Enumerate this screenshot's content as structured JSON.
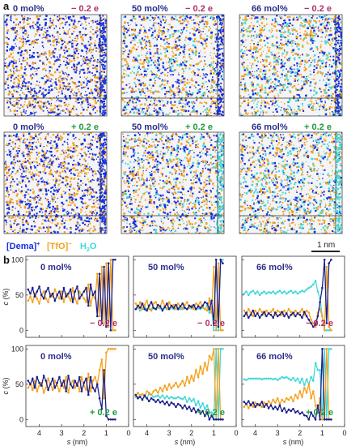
{
  "panel_a": {
    "letter": "a",
    "boxes": [
      {
        "mol": "0 mol%",
        "charge": "− 0.2 e",
        "sign": "neg"
      },
      {
        "mol": "50 mol%",
        "charge": "− 0.2 e",
        "sign": "neg"
      },
      {
        "mol": "66 mol%",
        "charge": "− 0.2 e",
        "sign": "neg"
      },
      {
        "mol": "0 mol%",
        "charge": "+ 0.2 e",
        "sign": "pos"
      },
      {
        "mol": "50 mol%",
        "charge": "+ 0.2 e",
        "sign": "pos"
      },
      {
        "mol": "66 mol%",
        "charge": "+ 0.2 e",
        "sign": "pos"
      }
    ],
    "legend": {
      "dema": "[Dema]",
      "dema_sup": "+",
      "tfo": "[TfO]",
      "tfo_sup": "−",
      "water": "H",
      "water_sub": "2",
      "water_end": "O"
    },
    "scalebar": "1 nm"
  },
  "panel_b": {
    "letter": "b",
    "ylabel_var": "c",
    "ylabel_unit": " (%)",
    "xlabel_var": "s",
    "xlabel_unit": " (nm)",
    "xticks": [
      "4",
      "3",
      "2",
      "1",
      "0"
    ],
    "yticks": [
      "0",
      "50",
      "100"
    ]
  },
  "colors": {
    "dema": "#1b1f8a",
    "tfo": "#f5a11c",
    "water": "#3fd8d8",
    "neg_label": "#b0306a",
    "pos_label": "#1f9a3c",
    "mol_label": "#2a2f8a",
    "bright_blue": "#1530e0"
  },
  "chart_data": [
    {
      "type": "line",
      "mol": "0 mol%",
      "charge": "− 0.2 e",
      "xlabel": "s (nm)",
      "ylabel": "c (%)",
      "xlim": [
        4.6,
        0
      ],
      "ylim": [
        -10,
        105
      ],
      "x": [
        4.5,
        4.4,
        4.3,
        4.2,
        4.1,
        4.0,
        3.9,
        3.8,
        3.7,
        3.6,
        3.5,
        3.4,
        3.3,
        3.2,
        3.1,
        3.0,
        2.9,
        2.8,
        2.7,
        2.6,
        2.5,
        2.4,
        2.3,
        2.2,
        2.1,
        2.0,
        1.9,
        1.8,
        1.7,
        1.6,
        1.5,
        1.4,
        1.3,
        1.2,
        1.1,
        1.0,
        0.9,
        0.8,
        0.7,
        0.6
      ],
      "series": [
        {
          "name": "[Dema]+",
          "values": [
            58,
            52,
            60,
            48,
            55,
            62,
            50,
            45,
            55,
            60,
            48,
            52,
            42,
            50,
            55,
            45,
            60,
            48,
            52,
            58,
            40,
            55,
            62,
            45,
            50,
            55,
            60,
            35,
            65,
            50,
            55,
            20,
            80,
            10,
            90,
            5,
            95,
            0,
            100,
            100
          ]
        },
        {
          "name": "[TfO]-",
          "values": [
            42,
            48,
            40,
            52,
            45,
            38,
            50,
            55,
            45,
            40,
            52,
            48,
            58,
            50,
            45,
            55,
            40,
            52,
            48,
            42,
            60,
            45,
            38,
            55,
            50,
            45,
            40,
            65,
            35,
            50,
            45,
            80,
            20,
            90,
            10,
            95,
            5,
            100,
            0,
            0
          ]
        }
      ]
    },
    {
      "type": "line",
      "mol": "50 mol%",
      "charge": "− 0.2 e",
      "xlabel": "s (nm)",
      "ylabel": "c (%)",
      "xlim": [
        4.6,
        0
      ],
      "ylim": [
        -10,
        105
      ],
      "x": [
        4.5,
        4.4,
        4.3,
        4.2,
        4.1,
        4.0,
        3.9,
        3.8,
        3.7,
        3.6,
        3.5,
        3.4,
        3.3,
        3.2,
        3.1,
        3.0,
        2.9,
        2.8,
        2.7,
        2.6,
        2.5,
        2.4,
        2.3,
        2.2,
        2.1,
        2.0,
        1.9,
        1.8,
        1.7,
        1.6,
        1.5,
        1.4,
        1.3,
        1.2,
        1.1,
        1.0,
        0.9,
        0.8,
        0.7,
        0.6
      ],
      "series": [
        {
          "name": "[Dema]+",
          "values": [
            30,
            35,
            32,
            38,
            30,
            28,
            35,
            40,
            32,
            30,
            36,
            34,
            28,
            33,
            38,
            30,
            35,
            32,
            36,
            30,
            34,
            38,
            32,
            30,
            35,
            33,
            36,
            30,
            34,
            32,
            35,
            40,
            38,
            30,
            42,
            10,
            100,
            5,
            100,
            95
          ]
        },
        {
          "name": "[TfO]-",
          "values": [
            38,
            32,
            40,
            30,
            36,
            42,
            30,
            28,
            38,
            40,
            32,
            34,
            42,
            35,
            30,
            40,
            33,
            36,
            30,
            38,
            34,
            30,
            36,
            40,
            32,
            35,
            30,
            38,
            36,
            40,
            33,
            30,
            28,
            45,
            25,
            90,
            0,
            95,
            0,
            0
          ]
        },
        {
          "name": "H2O",
          "values": [
            30,
            32,
            28,
            31,
            34,
            30,
            32,
            29,
            31,
            30,
            32,
            31,
            30,
            32,
            30,
            31,
            32,
            30,
            31,
            32,
            30,
            32,
            31,
            30,
            32,
            31,
            33,
            30,
            31,
            30,
            32,
            30,
            35,
            25,
            30,
            0,
            100,
            0,
            100,
            100
          ]
        }
      ]
    },
    {
      "type": "line",
      "mol": "66 mol%",
      "charge": "− 0.2 e",
      "xlabel": "s (nm)",
      "ylabel": "c (%)",
      "xlim": [
        4.6,
        0
      ],
      "ylim": [
        -10,
        105
      ],
      "x": [
        4.5,
        4.4,
        4.3,
        4.2,
        4.1,
        4.0,
        3.9,
        3.8,
        3.7,
        3.6,
        3.5,
        3.4,
        3.3,
        3.2,
        3.1,
        3.0,
        2.9,
        2.8,
        2.7,
        2.6,
        2.5,
        2.4,
        2.3,
        2.2,
        2.1,
        2.0,
        1.9,
        1.8,
        1.7,
        1.6,
        1.5,
        1.4,
        1.3,
        1.2,
        1.1,
        1.0,
        0.9,
        0.8,
        0.7,
        0.6
      ],
      "series": [
        {
          "name": "[Dema]+",
          "values": [
            20,
            25,
            18,
            22,
            28,
            20,
            24,
            18,
            22,
            26,
            20,
            24,
            22,
            18,
            25,
            20,
            22,
            26,
            20,
            24,
            18,
            22,
            25,
            20,
            24,
            22,
            18,
            26,
            20,
            15,
            10,
            5,
            8,
            20,
            40,
            60,
            100,
            10,
            95,
            100
          ]
        },
        {
          "name": "[TfO]-",
          "values": [
            28,
            22,
            30,
            25,
            20,
            28,
            24,
            30,
            26,
            22,
            28,
            24,
            26,
            30,
            22,
            28,
            26,
            22,
            28,
            24,
            30,
            26,
            22,
            28,
            24,
            26,
            30,
            22,
            28,
            25,
            15,
            10,
            5,
            25,
            30,
            20,
            0,
            90,
            5,
            0
          ]
        },
        {
          "name": "H2O",
          "values": [
            52,
            55,
            50,
            54,
            56,
            52,
            55,
            50,
            53,
            55,
            52,
            54,
            53,
            55,
            52,
            54,
            56,
            53,
            55,
            52,
            54,
            56,
            53,
            55,
            52,
            54,
            56,
            55,
            58,
            60,
            62,
            65,
            70,
            55,
            45,
            20,
            0,
            0,
            0,
            0
          ]
        }
      ]
    },
    {
      "type": "line",
      "mol": "0 mol%",
      "charge": "+ 0.2 e",
      "xlabel": "s (nm)",
      "ylabel": "c (%)",
      "xlim": [
        4.6,
        0
      ],
      "ylim": [
        -10,
        105
      ],
      "x": [
        4.5,
        4.4,
        4.3,
        4.2,
        4.1,
        4.0,
        3.9,
        3.8,
        3.7,
        3.6,
        3.5,
        3.4,
        3.3,
        3.2,
        3.1,
        3.0,
        2.9,
        2.8,
        2.7,
        2.6,
        2.5,
        2.4,
        2.3,
        2.2,
        2.1,
        2.0,
        1.9,
        1.8,
        1.7,
        1.6,
        1.5,
        1.4,
        1.3,
        1.2,
        1.1,
        1.0,
        0.9,
        0.8,
        0.7,
        0.6
      ],
      "series": [
        {
          "name": "[Dema]+",
          "values": [
            55,
            50,
            58,
            45,
            60,
            52,
            48,
            62,
            55,
            42,
            50,
            58,
            45,
            52,
            60,
            48,
            55,
            40,
            62,
            50,
            45,
            55,
            48,
            60,
            40,
            52,
            58,
            35,
            60,
            45,
            40,
            50,
            30,
            15,
            70,
            5,
            0,
            0,
            0,
            0
          ]
        },
        {
          "name": "[TfO]-",
          "values": [
            45,
            50,
            42,
            55,
            40,
            48,
            52,
            38,
            45,
            58,
            50,
            42,
            55,
            48,
            40,
            52,
            45,
            60,
            38,
            50,
            55,
            45,
            52,
            40,
            60,
            48,
            42,
            65,
            40,
            55,
            60,
            50,
            70,
            85,
            30,
            95,
            100,
            100,
            100,
            100
          ]
        }
      ]
    },
    {
      "type": "line",
      "mol": "50 mol%",
      "charge": "+ 0.2 e",
      "xlabel": "s (nm)",
      "ylabel": "c (%)",
      "xlim": [
        4.6,
        0
      ],
      "ylim": [
        -10,
        105
      ],
      "x": [
        4.5,
        4.4,
        4.3,
        4.2,
        4.1,
        4.0,
        3.9,
        3.8,
        3.7,
        3.6,
        3.5,
        3.4,
        3.3,
        3.2,
        3.1,
        3.0,
        2.9,
        2.8,
        2.7,
        2.6,
        2.5,
        2.4,
        2.3,
        2.2,
        2.1,
        2.0,
        1.9,
        1.8,
        1.7,
        1.6,
        1.5,
        1.4,
        1.3,
        1.2,
        1.1,
        1.0,
        0.9,
        0.8,
        0.7,
        0.6
      ],
      "series": [
        {
          "name": "[Dema]+",
          "values": [
            35,
            30,
            32,
            28,
            34,
            30,
            26,
            30,
            28,
            25,
            28,
            24,
            26,
            22,
            25,
            20,
            24,
            22,
            18,
            22,
            20,
            16,
            20,
            15,
            18,
            12,
            16,
            10,
            14,
            8,
            12,
            5,
            10,
            0,
            5,
            0,
            0,
            0,
            0,
            0
          ]
        },
        {
          "name": "[TfO]-",
          "values": [
            33,
            38,
            34,
            36,
            32,
            40,
            38,
            35,
            40,
            42,
            38,
            45,
            40,
            48,
            42,
            50,
            44,
            48,
            52,
            46,
            50,
            55,
            48,
            60,
            52,
            62,
            55,
            70,
            60,
            75,
            65,
            80,
            70,
            90,
            85,
            100,
            0,
            100,
            0,
            0
          ]
        },
        {
          "name": "H2O",
          "values": [
            32,
            32,
            34,
            36,
            34,
            30,
            36,
            35,
            32,
            33,
            34,
            31,
            34,
            30,
            33,
            30,
            32,
            30,
            30,
            32,
            30,
            29,
            32,
            25,
            30,
            26,
            29,
            20,
            26,
            17,
            23,
            15,
            20,
            10,
            10,
            0,
            100,
            0,
            100,
            100
          ]
        }
      ]
    },
    {
      "type": "line",
      "mol": "66 mol%",
      "charge": "+ 0.2 e",
      "xlabel": "s (nm)",
      "ylabel": "c (%)",
      "xlim": [
        4.6,
        0
      ],
      "ylim": [
        -10,
        105
      ],
      "x": [
        4.5,
        4.4,
        4.3,
        4.2,
        4.1,
        4.0,
        3.9,
        3.8,
        3.7,
        3.6,
        3.5,
        3.4,
        3.3,
        3.2,
        3.1,
        3.0,
        2.9,
        2.8,
        2.7,
        2.6,
        2.5,
        2.4,
        2.3,
        2.2,
        2.1,
        2.0,
        1.9,
        1.8,
        1.7,
        1.6,
        1.5,
        1.4,
        1.3,
        1.2,
        1.1,
        1.0,
        0.9,
        0.8,
        0.7,
        0.6
      ],
      "series": [
        {
          "name": "[Dema]+",
          "values": [
            25,
            22,
            26,
            20,
            24,
            18,
            22,
            20,
            25,
            18,
            22,
            16,
            20,
            15,
            18,
            14,
            20,
            12,
            16,
            10,
            14,
            12,
            15,
            10,
            12,
            8,
            10,
            6,
            5,
            0,
            10,
            5,
            0,
            20,
            0,
            100,
            0,
            0,
            0,
            0
          ]
        },
        {
          "name": "[TfO]-",
          "values": [
            18,
            22,
            16,
            22,
            18,
            24,
            20,
            22,
            18,
            24,
            20,
            26,
            22,
            28,
            24,
            30,
            22,
            28,
            25,
            30,
            28,
            32,
            26,
            35,
            30,
            40,
            32,
            45,
            38,
            50,
            30,
            40,
            20,
            10,
            30,
            0,
            0,
            100,
            0,
            0
          ]
        },
        {
          "name": "H2O",
          "values": [
            57,
            56,
            58,
            58,
            58,
            58,
            58,
            58,
            57,
            58,
            58,
            58,
            58,
            57,
            58,
            56,
            58,
            60,
            59,
            60,
            58,
            56,
            59,
            55,
            58,
            52,
            58,
            49,
            57,
            50,
            60,
            55,
            80,
            70,
            70,
            0,
            100,
            0,
            100,
            100
          ]
        }
      ]
    }
  ]
}
